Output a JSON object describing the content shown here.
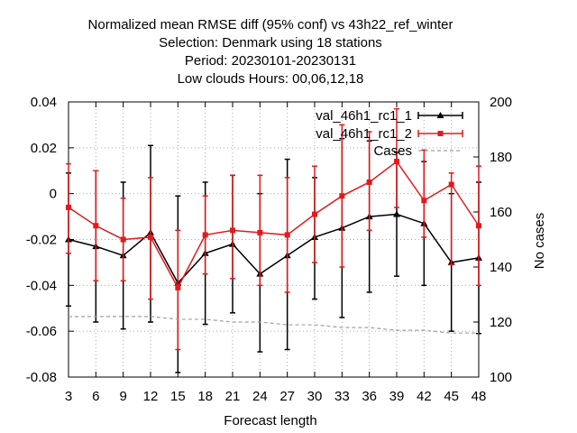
{
  "chart_data": {
    "type": "line",
    "title_lines": [
      "Normalized mean RMSE diff (95% conf) vs 43h22_ref_winter",
      "Selection: Denmark using    18 stations",
      "Period: 20230101-20230131",
      "Low clouds   Hours:  00,06,12,18"
    ],
    "xlabel": "Forecast length",
    "ylabel": "",
    "y2label": "No cases",
    "x": [
      3,
      6,
      9,
      12,
      15,
      18,
      21,
      24,
      27,
      30,
      33,
      36,
      39,
      42,
      45,
      48
    ],
    "xlim": [
      3,
      48
    ],
    "ylim": [
      -0.08,
      0.04
    ],
    "y2lim": [
      100,
      200
    ],
    "x_ticks": [
      3,
      6,
      9,
      12,
      15,
      18,
      21,
      24,
      27,
      30,
      33,
      36,
      39,
      42,
      45,
      48
    ],
    "y_ticks": [
      -0.08,
      -0.06,
      -0.04,
      -0.02,
      0,
      0.02,
      0.04
    ],
    "y_tick_labels": [
      "-0.08",
      "-0.06",
      "-0.04",
      "-0.02",
      "0",
      "0.02",
      "0.04"
    ],
    "y2_ticks": [
      100,
      120,
      140,
      160,
      180,
      200
    ],
    "grid": true,
    "legend_position": "top-right",
    "series": [
      {
        "name": "val_46h1_rc1_1",
        "legend_label": "val_46h1_rc1_1",
        "color": "#000000",
        "marker": "triangle",
        "values": [
          -0.02,
          -0.023,
          -0.027,
          -0.017,
          -0.039,
          -0.026,
          -0.022,
          -0.035,
          -0.027,
          -0.019,
          -0.015,
          -0.01,
          -0.009,
          -0.013,
          -0.03,
          -0.028
        ],
        "err_low": [
          -0.049,
          -0.056,
          -0.059,
          -0.056,
          -0.078,
          -0.057,
          -0.052,
          -0.069,
          -0.068,
          -0.046,
          -0.054,
          -0.043,
          -0.036,
          -0.04,
          -0.06,
          -0.061
        ],
        "err_high": [
          0.009,
          0.01,
          0.005,
          0.021,
          -0.001,
          0.005,
          0.008,
          0.0,
          0.015,
          0.007,
          0.024,
          0.023,
          0.018,
          0.014,
          0.0,
          0.005
        ]
      },
      {
        "name": "val_46h1_rc1_2",
        "legend_label": "val_46h1_rc1_2",
        "color": "#e31a1c",
        "marker": "square",
        "values": [
          -0.006,
          -0.014,
          -0.02,
          -0.019,
          -0.041,
          -0.018,
          -0.016,
          -0.017,
          -0.018,
          -0.009,
          -0.001,
          0.005,
          0.014,
          -0.003,
          0.004,
          -0.014
        ],
        "err_low": [
          -0.026,
          -0.038,
          -0.038,
          -0.046,
          -0.068,
          -0.035,
          -0.037,
          -0.04,
          -0.043,
          -0.03,
          -0.032,
          -0.016,
          -0.006,
          -0.019,
          -0.031,
          -0.04
        ],
        "err_high": [
          0.013,
          0.01,
          -0.002,
          0.007,
          -0.016,
          -0.001,
          0.008,
          0.008,
          0.007,
          0.012,
          0.03,
          0.027,
          0.037,
          0.019,
          0.009,
          0.012
        ]
      },
      {
        "name": "Cases",
        "legend_label": "Cases",
        "axis": "y2",
        "color": "#a0a0a0",
        "dashed": true,
        "values": [
          122,
          122,
          122,
          122,
          121,
          121,
          120,
          120,
          119,
          119,
          118,
          118,
          117,
          117,
          116,
          116
        ]
      }
    ]
  }
}
